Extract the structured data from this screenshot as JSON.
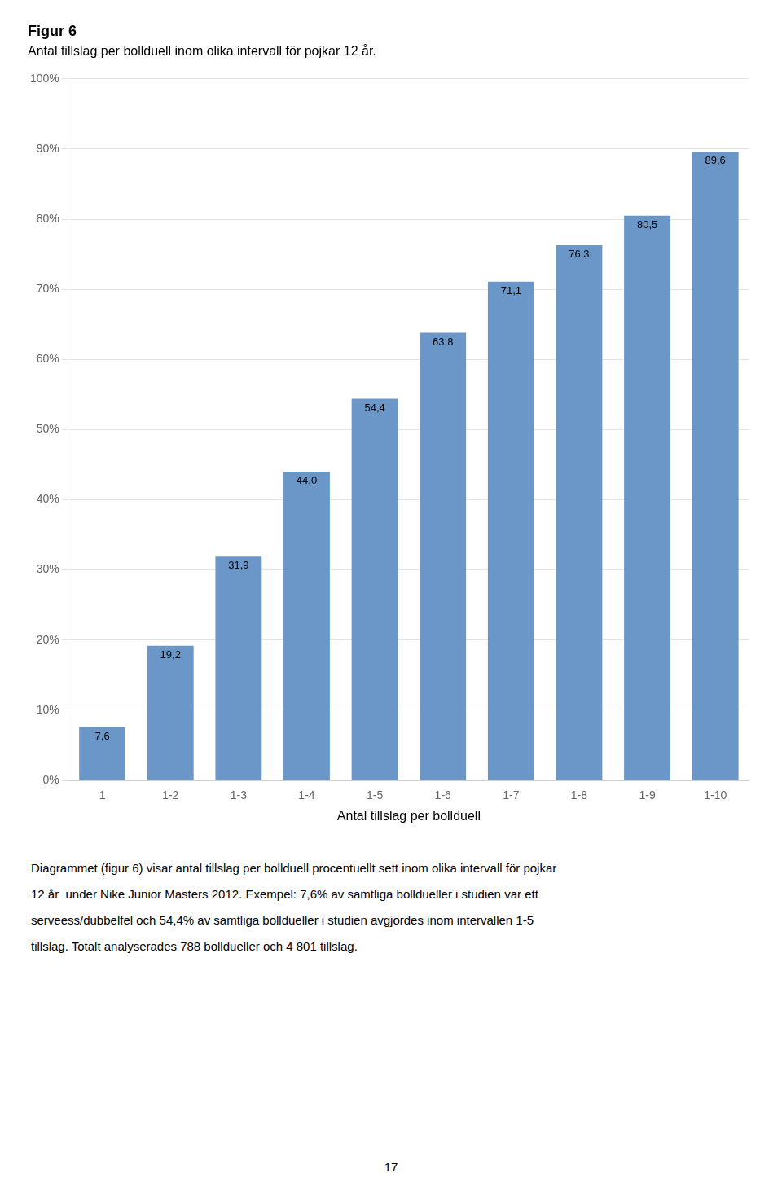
{
  "chart_data": {
    "type": "bar",
    "title": "Figur 6",
    "subtitle": "Antal tillslag per bollduell inom olika intervall för pojkar 12 år.",
    "categories": [
      "1",
      "1-2",
      "1-3",
      "1-4",
      "1-5",
      "1-6",
      "1-7",
      "1-8",
      "1-9",
      "1-10"
    ],
    "values": [
      7.6,
      19.2,
      31.9,
      44.0,
      54.4,
      63.8,
      71.1,
      76.3,
      80.5,
      89.6
    ],
    "value_labels": [
      "7,6",
      "19,2",
      "31,9",
      "44,0",
      "54,4",
      "63,8",
      "71,1",
      "76,3",
      "80,5",
      "89,6"
    ],
    "data_labels": true,
    "color": "#6B96C8",
    "xlabel": "Antal tillslag per bollduell",
    "ylim": [
      0,
      100
    ],
    "yticks": [
      {
        "value": 0,
        "label": "0%"
      },
      {
        "value": 10,
        "label": "10%"
      },
      {
        "value": 20,
        "label": "20%"
      },
      {
        "value": 30,
        "label": "30%"
      },
      {
        "value": 40,
        "label": "40%"
      },
      {
        "value": 50,
        "label": "50%"
      },
      {
        "value": 60,
        "label": "60%"
      },
      {
        "value": 70,
        "label": "70%"
      },
      {
        "value": 80,
        "label": "80%"
      },
      {
        "value": 90,
        "label": "90%"
      },
      {
        "value": 100,
        "label": "100%"
      }
    ],
    "grid": true,
    "body_text": [
      "Diagrammet (figur 6) visar antal tillslag per bollduell procentuellt sett inom olika intervall för pojkar",
      "12 år  under Nike Junior Masters 2012. Exempel: 7,6% av samtliga bolldueller i studien var ett",
      "serveess/dubbelfel och 54,4% av samtliga bolldueller i studien avgjordes inom intervallen 1-5",
      "tillslag. Totalt analyserades 788 bolldueller och 4 801 tillslag."
    ],
    "page_number": "17"
  }
}
